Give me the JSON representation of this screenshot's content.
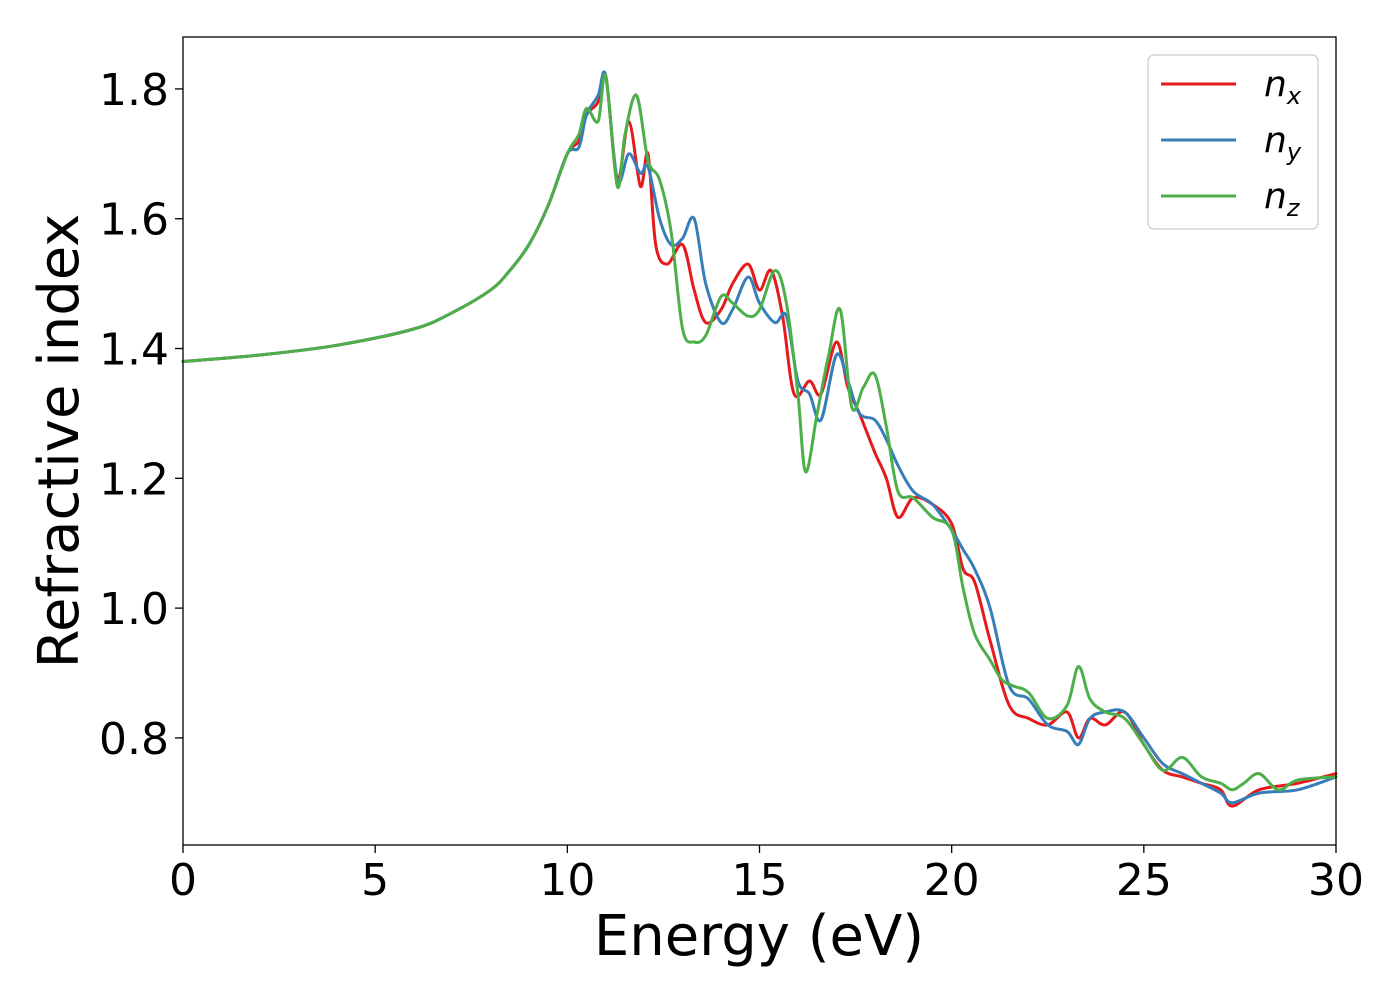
{
  "chart_data": {
    "type": "line",
    "xlabel": "Energy (eV)",
    "ylabel": "Refractive index",
    "xlim": [
      0,
      30
    ],
    "ylim": [
      0.635,
      1.88
    ],
    "xticks": [
      0,
      5,
      10,
      15,
      20,
      25,
      30
    ],
    "yticks": [
      0.8,
      1.0,
      1.2,
      1.4,
      1.6,
      1.8
    ],
    "grid": false,
    "legend_position": "top-right",
    "series": [
      {
        "name": "n",
        "subscript": "x",
        "color": "#e41a1c",
        "x": [
          0,
          2,
          4,
          6,
          7,
          8,
          8.5,
          9,
          9.5,
          10,
          10.3,
          10.5,
          10.8,
          11,
          11.3,
          11.6,
          11.9,
          12.1,
          12.3,
          12.6,
          13,
          13.3,
          13.6,
          14,
          14.3,
          14.7,
          15,
          15.3,
          15.6,
          15.9,
          16.3,
          16.6,
          17,
          17.3,
          17.6,
          18,
          18.3,
          18.6,
          19,
          19.5,
          20,
          20.3,
          20.6,
          21,
          21.5,
          22,
          22.5,
          23,
          23.3,
          23.6,
          24,
          24.5,
          25,
          25.5,
          26,
          26.5,
          27,
          27.3,
          28,
          29,
          30
        ],
        "y": [
          1.38,
          1.39,
          1.405,
          1.43,
          1.455,
          1.49,
          1.52,
          1.56,
          1.62,
          1.7,
          1.72,
          1.76,
          1.78,
          1.82,
          1.66,
          1.75,
          1.65,
          1.7,
          1.56,
          1.53,
          1.56,
          1.49,
          1.44,
          1.46,
          1.5,
          1.53,
          1.49,
          1.52,
          1.45,
          1.33,
          1.35,
          1.33,
          1.41,
          1.34,
          1.3,
          1.24,
          1.2,
          1.14,
          1.17,
          1.16,
          1.13,
          1.06,
          1.04,
          0.95,
          0.85,
          0.83,
          0.82,
          0.84,
          0.8,
          0.83,
          0.82,
          0.84,
          0.79,
          0.75,
          0.74,
          0.73,
          0.72,
          0.695,
          0.72,
          0.73,
          0.745
        ]
      },
      {
        "name": "n",
        "subscript": "y",
        "color": "#377eb8",
        "x": [
          0,
          2,
          4,
          6,
          7,
          8,
          8.5,
          9,
          9.5,
          10,
          10.3,
          10.5,
          10.8,
          11,
          11.3,
          11.6,
          11.9,
          12.1,
          12.4,
          12.7,
          13,
          13.3,
          13.6,
          14,
          14.3,
          14.7,
          15,
          15.4,
          15.7,
          16,
          16.3,
          16.6,
          17,
          17.3,
          17.6,
          18,
          18.3,
          18.6,
          19,
          19.5,
          20,
          20.3,
          20.6,
          21,
          21.5,
          22,
          22.5,
          23,
          23.3,
          23.6,
          24,
          24.5,
          25,
          25.5,
          26,
          26.5,
          27,
          27.3,
          28,
          29,
          30
        ],
        "y": [
          1.38,
          1.39,
          1.405,
          1.43,
          1.455,
          1.49,
          1.52,
          1.56,
          1.62,
          1.7,
          1.71,
          1.76,
          1.79,
          1.82,
          1.66,
          1.7,
          1.67,
          1.68,
          1.6,
          1.56,
          1.57,
          1.6,
          1.5,
          1.44,
          1.46,
          1.51,
          1.47,
          1.44,
          1.45,
          1.35,
          1.33,
          1.29,
          1.39,
          1.35,
          1.3,
          1.29,
          1.26,
          1.22,
          1.18,
          1.16,
          1.12,
          1.09,
          1.06,
          1.0,
          0.88,
          0.86,
          0.82,
          0.81,
          0.79,
          0.83,
          0.84,
          0.84,
          0.8,
          0.76,
          0.745,
          0.73,
          0.715,
          0.7,
          0.715,
          0.72,
          0.74
        ]
      },
      {
        "name": "n",
        "subscript": "z",
        "color": "#4daf4a",
        "x": [
          0,
          2,
          4,
          6,
          7,
          8,
          8.5,
          9,
          9.5,
          10,
          10.3,
          10.5,
          10.8,
          11,
          11.3,
          11.5,
          11.8,
          12.1,
          12.4,
          12.7,
          13,
          13.3,
          13.6,
          14,
          14.3,
          14.7,
          15,
          15.4,
          15.7,
          16,
          16.2,
          16.5,
          16.8,
          17.1,
          17.4,
          17.7,
          18,
          18.3,
          18.6,
          19,
          19.5,
          20,
          20.3,
          20.6,
          21,
          21.3,
          21.6,
          22,
          22.5,
          23,
          23.3,
          23.6,
          24,
          24.5,
          25,
          25.5,
          26,
          26.5,
          27,
          27.3,
          27.6,
          28,
          28.5,
          29,
          30
        ],
        "y": [
          1.38,
          1.39,
          1.405,
          1.43,
          1.455,
          1.49,
          1.52,
          1.56,
          1.62,
          1.7,
          1.73,
          1.77,
          1.75,
          1.82,
          1.65,
          1.73,
          1.79,
          1.69,
          1.66,
          1.58,
          1.43,
          1.41,
          1.42,
          1.48,
          1.47,
          1.45,
          1.46,
          1.52,
          1.47,
          1.33,
          1.21,
          1.3,
          1.39,
          1.46,
          1.31,
          1.34,
          1.36,
          1.28,
          1.18,
          1.17,
          1.14,
          1.12,
          1.03,
          0.96,
          0.92,
          0.89,
          0.88,
          0.87,
          0.83,
          0.85,
          0.91,
          0.86,
          0.84,
          0.83,
          0.79,
          0.75,
          0.77,
          0.74,
          0.73,
          0.72,
          0.73,
          0.745,
          0.72,
          0.735,
          0.74
        ]
      }
    ]
  }
}
